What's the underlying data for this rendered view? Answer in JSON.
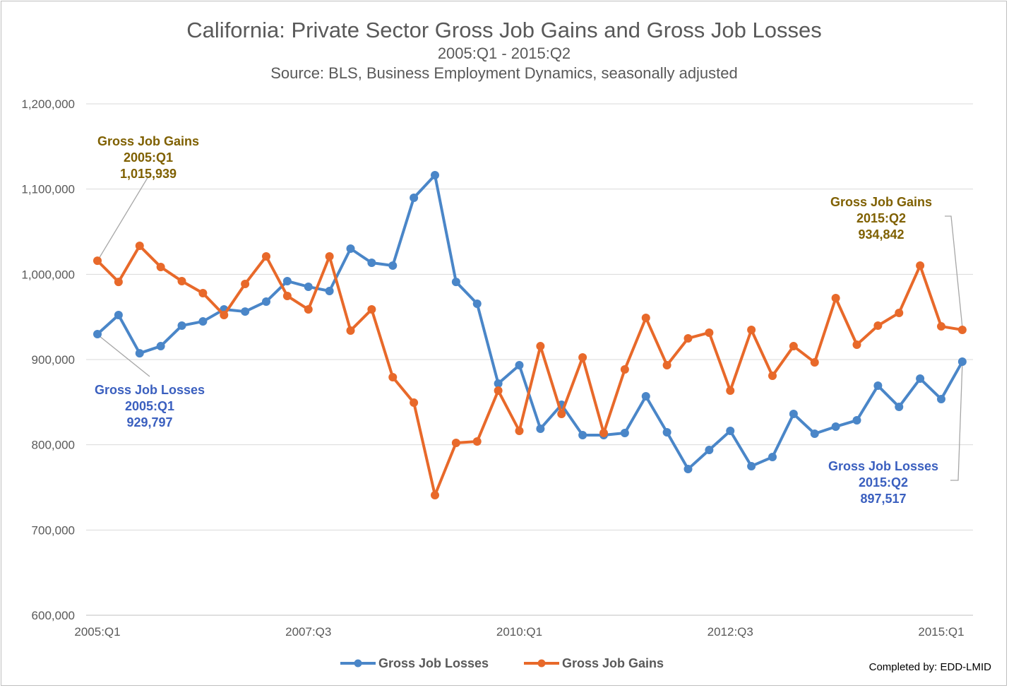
{
  "chart_data": {
    "type": "line",
    "title": "California: Private Sector Gross Job Gains and Gross Job Losses",
    "subtitle": "2005:Q1 - 2015:Q2",
    "source": "Source: BLS, Business Employment Dynamics, seasonally adjusted",
    "credit": "Completed by: EDD-LMID",
    "xlabel": "",
    "ylabel": "",
    "ylim": [
      600000,
      1200000
    ],
    "y_ticks": [
      600000,
      700000,
      800000,
      900000,
      1000000,
      1100000,
      1200000
    ],
    "y_tick_labels": [
      "600,000",
      "700,000",
      "800,000",
      "900,000",
      "1,000,000",
      "1,100,000",
      "1,200,000"
    ],
    "x_tick_labels": [
      {
        "label": "2005:Q1",
        "index": 0
      },
      {
        "label": "2007:Q3",
        "index": 10
      },
      {
        "label": "2010:Q1",
        "index": 20
      },
      {
        "label": "2012:Q3",
        "index": 30
      },
      {
        "label": "2015:Q1",
        "index": 40
      }
    ],
    "grid": true,
    "legend_position": "bottom",
    "x_count": 42,
    "series": [
      {
        "name": "Gross Job Losses",
        "color": "#4a86c8",
        "values": [
          929797,
          952200,
          907400,
          915700,
          939800,
          944700,
          958800,
          956300,
          968000,
          992000,
          985400,
          980400,
          1030100,
          1013500,
          1010200,
          1089800,
          1116300,
          991100,
          965500,
          871800,
          893400,
          818800,
          847000,
          811300,
          811300,
          813800,
          856900,
          814600,
          771500,
          793900,
          816300,
          774900,
          785600,
          836200,
          813000,
          821300,
          828700,
          869300,
          844500,
          877600,
          853600,
          897517
        ]
      },
      {
        "name": "Gross Job Gains",
        "color": "#e8692a",
        "values": [
          1015939,
          991100,
          1033400,
          1008600,
          992000,
          977900,
          952200,
          988700,
          1021000,
          974600,
          958800,
          1021000,
          934000,
          958800,
          879300,
          849400,
          740900,
          802200,
          803900,
          863500,
          816300,
          915700,
          836200,
          902500,
          813800,
          888400,
          948900,
          893400,
          924900,
          931500,
          863500,
          934800,
          880900,
          915700,
          896700,
          972100,
          917400,
          939800,
          954700,
          1010200,
          938900,
          934842
        ]
      }
    ],
    "annotations": [
      {
        "series": "Gross Job Gains",
        "lines": [
          "Gross Job Gains",
          "2005:Q1",
          "1,015,939"
        ],
        "color": "#7f6000"
      },
      {
        "series": "Gross Job Losses",
        "lines": [
          "Gross Job Losses",
          "2005:Q1",
          "929,797"
        ],
        "color": "#3a5fbf"
      },
      {
        "series": "Gross Job Gains",
        "lines": [
          "Gross Job Gains",
          "2015:Q2",
          "934,842"
        ],
        "color": "#7f6000"
      },
      {
        "series": "Gross Job Losses",
        "lines": [
          "Gross Job Losses",
          "2015:Q2",
          "897,517"
        ],
        "color": "#3a5fbf"
      }
    ]
  }
}
